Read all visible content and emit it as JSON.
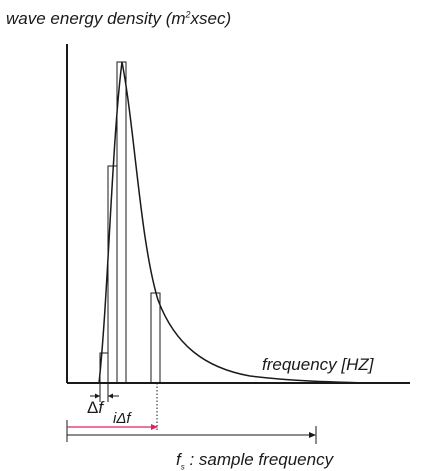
{
  "labels": {
    "y_axis_prefix": "wave energy density (m",
    "y_axis_sup": "2",
    "y_axis_suffix": "xsec)",
    "x_axis": "frequency [HZ]",
    "delta_symbol": "Δ",
    "delta_f": "f",
    "i_delta_f": "iΔf",
    "fs_symbol": "f",
    "fs_sub": "s",
    "fs_text": " : sample frequency"
  },
  "colors": {
    "ink": "#1a1a1a",
    "highlight_arrow": "#e0245e"
  }
}
